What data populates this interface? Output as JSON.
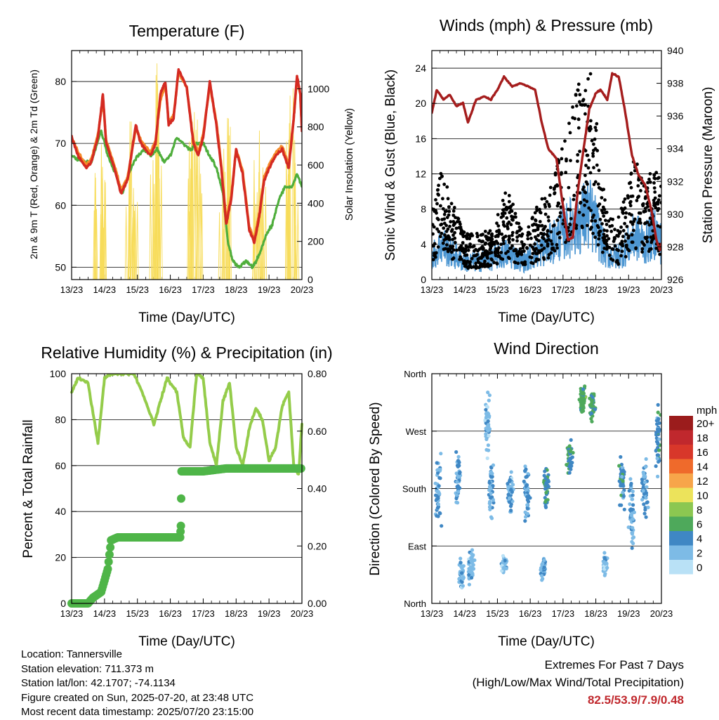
{
  "colors": {
    "t2m": "#d42a22",
    "t9m": "#f58b2a",
    "td": "#4fae3c",
    "solar": "#f7dc5a",
    "gust": "#000000",
    "wind": "#4c96d2",
    "pressure": "#a51d1d",
    "rh": "#94cc4a",
    "precip": "#4fb548"
  },
  "temperature": {
    "title": "Temperature (F)",
    "xlabel": "Time (Day/UTC)",
    "ylabel_left": "2m & 9m T (Red, Orange) & 2m Td (Green)",
    "ylabel_right": "Solar Insolation (Yellow)"
  },
  "winds": {
    "title": "Winds (mph) & Pressure (mb)",
    "xlabel": "Time (Day/UTC)",
    "ylabel_left": "Sonic Wind & Gust (Blue, Black)",
    "ylabel_right": "Station Pressure (Maroon)"
  },
  "humidity": {
    "title": "Relative Humidity (%) & Precipitation (in)",
    "xlabel": "Time (Day/UTC)",
    "ylabel_left": "Percent & Total Rainfall"
  },
  "direction": {
    "title": "Wind Direction",
    "xlabel": "Time (Day/UTC)",
    "ylabel_left": "Direction (Colored By Speed)"
  },
  "legend": {
    "title": "mph",
    "labels": [
      "20+",
      "18",
      "16",
      "14",
      "12",
      "10",
      "8",
      "6",
      "4",
      "2",
      "0"
    ],
    "colors": [
      "#9b1c1c",
      "#c0282d",
      "#d8372a",
      "#ef6a2b",
      "#f7a54a",
      "#ece35b",
      "#8cc751",
      "#4ea95b",
      "#3f87c4",
      "#7dbbe6",
      "#b9e1f6"
    ]
  },
  "info": {
    "location": "Location: Tannersville",
    "elevation": "Station elevation: 711.373 m",
    "latlon": "Station lat/lon: 42.1707; -74.1134",
    "created": "Figure created on Sun, 2025-07-20, at 23:48 UTC",
    "recent": "Most recent data timestamp: 2025/07/20 23:15:00"
  },
  "extremes": {
    "line1": "Extremes For Past 7 Days",
    "line2": "(High/Low/Max Wind/Total Precipitation)",
    "values": "82.5/53.9/7.9/0.48"
  },
  "chart_data": [
    {
      "id": "temperature",
      "type": "line",
      "title": "Temperature (F)",
      "xlabel": "Time (Day/UTC)",
      "ylabel": "2m & 9m T (Red, Orange) & 2m Td (Green)",
      "y2label": "Solar Insolation (Yellow)",
      "x_ticks": [
        "13/23",
        "14/23",
        "15/23",
        "16/23",
        "17/23",
        "18/23",
        "19/23",
        "20/23"
      ],
      "xlim": [
        0,
        7
      ],
      "ylim": [
        48,
        85
      ],
      "y_ticks": [
        50,
        60,
        70,
        80
      ],
      "y2lim": [
        0,
        1200
      ],
      "y2_ticks": [
        0,
        200,
        400,
        600,
        800,
        1000
      ],
      "grid_y": [
        50,
        60,
        70,
        80
      ],
      "series": [
        {
          "name": "2m T",
          "axis": "left",
          "color_key": "t2m",
          "x": [
            0,
            0.2,
            0.45,
            0.6,
            0.8,
            0.95,
            1.05,
            1.3,
            1.5,
            1.7,
            1.95,
            2.1,
            2.4,
            2.55,
            2.7,
            2.85,
            2.95,
            3.1,
            3.25,
            3.5,
            3.7,
            3.85,
            4.0,
            4.2,
            4.4,
            4.55,
            4.7,
            4.85,
            5.0,
            5.2,
            5.4,
            5.55,
            5.7,
            5.85,
            6.0,
            6.2,
            6.4,
            6.6,
            6.75,
            6.85,
            6.95,
            7.0
          ],
          "y": [
            71,
            68,
            66,
            67,
            71,
            78,
            70,
            66,
            62,
            64,
            73,
            70,
            68,
            70,
            78,
            80,
            73,
            74,
            82,
            79,
            70,
            68,
            71,
            80,
            73,
            66,
            57,
            61,
            69,
            65,
            56,
            54,
            58,
            64,
            66,
            68,
            69,
            66,
            74,
            81,
            78,
            72
          ]
        },
        {
          "name": "9m T",
          "axis": "left",
          "color_key": "t9m",
          "x": [
            0,
            0.2,
            0.45,
            0.6,
            0.8,
            0.95,
            1.05,
            1.3,
            1.5,
            1.7,
            1.95,
            2.1,
            2.4,
            2.55,
            2.7,
            2.85,
            2.95,
            3.1,
            3.25,
            3.5,
            3.7,
            3.85,
            4.0,
            4.2,
            4.4,
            4.55,
            4.7,
            4.85,
            5.0,
            5.2,
            5.4,
            5.55,
            5.7,
            5.85,
            6.0,
            6.2,
            6.4,
            6.6,
            6.75,
            6.85,
            6.95,
            7.0
          ],
          "y": [
            71,
            68.5,
            66.5,
            67.5,
            71.5,
            77,
            70.5,
            66.5,
            62.5,
            64.5,
            72.5,
            70.5,
            68.5,
            70.5,
            77,
            79.5,
            73.5,
            74.5,
            81.5,
            79,
            70.5,
            68.5,
            71.5,
            79.5,
            73.5,
            66.5,
            57.5,
            61.5,
            69,
            65.5,
            56.5,
            54.5,
            58.5,
            64.5,
            66.5,
            68.5,
            69.5,
            66.5,
            74,
            80.5,
            78,
            72.5
          ]
        },
        {
          "name": "2m Td",
          "axis": "left",
          "color_key": "td",
          "x": [
            0,
            0.3,
            0.6,
            0.9,
            1.1,
            1.35,
            1.55,
            1.8,
            2.0,
            2.2,
            2.4,
            2.6,
            2.8,
            3.0,
            3.2,
            3.4,
            3.6,
            3.8,
            4.0,
            4.2,
            4.4,
            4.6,
            4.75,
            4.9,
            5.1,
            5.3,
            5.5,
            5.7,
            5.9,
            6.1,
            6.3,
            6.5,
            6.7,
            6.85,
            7.0
          ],
          "y": [
            68,
            67,
            67,
            72,
            68,
            65,
            62,
            66,
            68,
            69,
            68,
            69,
            67,
            68,
            71,
            70,
            69,
            70,
            70,
            68,
            66,
            62,
            54,
            51,
            50,
            51,
            50,
            52,
            55,
            57,
            61,
            63,
            63,
            65,
            63
          ]
        },
        {
          "name": "Solar Insolation",
          "axis": "right",
          "color_key": "solar",
          "note": "daily peaks",
          "peaks": [
            [
              0.85,
              780
            ],
            [
              1.8,
              950
            ],
            [
              2.6,
              1180
            ],
            [
              3.75,
              1050
            ],
            [
              4.7,
              1000
            ],
            [
              5.7,
              900
            ],
            [
              6.7,
              1080
            ]
          ]
        }
      ]
    },
    {
      "id": "winds",
      "type": "line",
      "title": "Winds (mph) & Pressure (mb)",
      "xlabel": "Time (Day/UTC)",
      "ylabel": "Sonic Wind & Gust (Blue, Black)",
      "y2label": "Station Pressure (Maroon)",
      "x_ticks": [
        "13/23",
        "14/23",
        "15/23",
        "16/23",
        "17/23",
        "18/23",
        "19/23",
        "20/23"
      ],
      "xlim": [
        0,
        7
      ],
      "ylim": [
        0,
        26
      ],
      "y_ticks": [
        0,
        4,
        8,
        12,
        16,
        20,
        24
      ],
      "y2lim": [
        926,
        940
      ],
      "y2_ticks": [
        926,
        928,
        930,
        932,
        934,
        936,
        938,
        940
      ],
      "grid_y": [
        4,
        8,
        12,
        16,
        20,
        24
      ],
      "series": [
        {
          "name": "Station Pressure",
          "axis": "right",
          "color_key": "pressure",
          "x": [
            0,
            0.15,
            0.35,
            0.55,
            0.75,
            0.95,
            1.1,
            1.35,
            1.6,
            1.8,
            2.0,
            2.2,
            2.45,
            2.7,
            2.95,
            3.15,
            3.35,
            3.55,
            3.8,
            3.95,
            4.15,
            4.3,
            4.45,
            4.6,
            4.8,
            5.0,
            5.15,
            5.35,
            5.5,
            5.7,
            5.9,
            6.1,
            6.3,
            6.5,
            6.7,
            6.85,
            6.95,
            7.0
          ],
          "y": [
            936.2,
            937.6,
            937.0,
            937.3,
            936.6,
            936.8,
            935.6,
            937.0,
            937.2,
            937.0,
            937.6,
            938.4,
            937.8,
            938.0,
            937.8,
            937.6,
            935.6,
            934.0,
            933.4,
            931.2,
            928.4,
            928.6,
            931.4,
            933.6,
            936.4,
            937.4,
            937.6,
            937.0,
            938.6,
            938.4,
            936.2,
            933.6,
            932.4,
            931.8,
            930.2,
            928.4,
            927.8,
            928.2
          ]
        },
        {
          "name": "Gust",
          "axis": "left",
          "color_key": "gust",
          "note": "scatter envelope",
          "x": [
            0,
            0.3,
            0.6,
            1.0,
            1.4,
            1.9,
            2.3,
            2.8,
            3.2,
            3.6,
            3.9,
            4.1,
            4.4,
            4.6,
            4.8,
            5.0,
            5.3,
            5.6,
            5.9,
            6.2,
            6.5,
            6.8,
            7.0
          ],
          "y": [
            8,
            12,
            9,
            5,
            5,
            6,
            10,
            5,
            8,
            10,
            14,
            16,
            22,
            20,
            24,
            18,
            8,
            6,
            9,
            14,
            10,
            13,
            10
          ]
        },
        {
          "name": "Sonic Wind",
          "axis": "left",
          "color_key": "wind",
          "x": [
            0,
            0.3,
            0.6,
            1.0,
            1.4,
            1.9,
            2.3,
            2.8,
            3.2,
            3.6,
            3.9,
            4.1,
            4.4,
            4.6,
            4.8,
            5.0,
            5.3,
            5.6,
            5.9,
            6.2,
            6.5,
            6.8,
            7.0
          ],
          "y": [
            2.5,
            4,
            3,
            2,
            2,
            2.5,
            3,
            2,
            3,
            4,
            5,
            5.5,
            6.5,
            7,
            7.5,
            6,
            3,
            2.5,
            3.5,
            5,
            4,
            5.5,
            4
          ]
        }
      ]
    },
    {
      "id": "humidity",
      "type": "line",
      "title": "Relative Humidity (%) & Precipitation (in)",
      "xlabel": "Time (Day/UTC)",
      "ylabel": "Percent & Total Rainfall",
      "x_ticks": [
        "13/23",
        "14/23",
        "15/23",
        "16/23",
        "17/23",
        "18/23",
        "19/23",
        "20/23"
      ],
      "xlim": [
        0,
        7
      ],
      "ylim": [
        0,
        100
      ],
      "y_ticks": [
        0,
        20,
        40,
        60,
        80,
        100
      ],
      "y2lim": [
        0,
        0.8
      ],
      "y2_ticks": [
        "0.00",
        "0.20",
        "0.40",
        "0.60",
        "0.80"
      ],
      "grid_y": [
        20,
        40,
        60,
        80
      ],
      "series": [
        {
          "name": "Relative Humidity",
          "axis": "left",
          "color_key": "rh",
          "x": [
            0,
            0.2,
            0.5,
            0.8,
            1.0,
            1.2,
            1.5,
            1.9,
            2.2,
            2.5,
            2.7,
            2.9,
            3.2,
            3.4,
            3.6,
            3.8,
            4.0,
            4.2,
            4.4,
            4.6,
            4.8,
            5.0,
            5.2,
            5.4,
            5.6,
            5.8,
            6.0,
            6.2,
            6.4,
            6.6,
            6.75,
            6.9,
            7.0
          ],
          "y": [
            92,
            98,
            96,
            70,
            98,
            100,
            100,
            100,
            90,
            78,
            88,
            98,
            92,
            72,
            68,
            100,
            98,
            70,
            60,
            88,
            96,
            68,
            60,
            76,
            85,
            80,
            62,
            68,
            86,
            92,
            60,
            56,
            78
          ]
        },
        {
          "name": "Total Precipitation",
          "axis": "right",
          "color_key": "precip",
          "x": [
            0,
            0.5,
            0.65,
            0.9,
            1.1,
            1.2,
            1.4,
            2.0,
            3.3,
            3.32,
            3.34,
            3.5,
            4.0,
            4.7,
            5.0,
            6.0,
            7.0
          ],
          "y": [
            0.0,
            0.0,
            0.02,
            0.04,
            0.12,
            0.22,
            0.23,
            0.23,
            0.23,
            0.27,
            0.46,
            0.46,
            0.46,
            0.47,
            0.47,
            0.47,
            0.47
          ]
        }
      ]
    },
    {
      "id": "direction",
      "type": "scatter",
      "title": "Wind Direction",
      "xlabel": "Time (Day/UTC)",
      "ylabel": "Direction (Colored By Speed)",
      "x_ticks": [
        "13/23",
        "14/23",
        "15/23",
        "16/23",
        "17/23",
        "18/23",
        "19/23",
        "20/23"
      ],
      "xlim": [
        0,
        7
      ],
      "ylim": [
        0,
        360
      ],
      "y_ticks": [
        "North",
        "East",
        "South",
        "West",
        "North"
      ],
      "grid_y": [
        90,
        180,
        270
      ],
      "clusters": [
        {
          "x": 0.2,
          "dir": 170,
          "spread": 80,
          "speed": 3
        },
        {
          "x": 0.8,
          "dir": 200,
          "spread": 70,
          "speed": 3
        },
        {
          "x": 0.9,
          "dir": 45,
          "spread": 30,
          "speed": 2
        },
        {
          "x": 1.2,
          "dir": 60,
          "spread": 40,
          "speed": 2
        },
        {
          "x": 1.7,
          "dir": 280,
          "spread": 70,
          "speed": 2
        },
        {
          "x": 1.8,
          "dir": 180,
          "spread": 60,
          "speed": 3
        },
        {
          "x": 2.2,
          "dir": 60,
          "spread": 20,
          "speed": 2
        },
        {
          "x": 2.4,
          "dir": 170,
          "spread": 40,
          "speed": 3
        },
        {
          "x": 2.9,
          "dir": 170,
          "spread": 60,
          "speed": 3
        },
        {
          "x": 3.4,
          "dir": 55,
          "spread": 20,
          "speed": 3
        },
        {
          "x": 3.5,
          "dir": 180,
          "spread": 50,
          "speed": 5
        },
        {
          "x": 4.2,
          "dir": 230,
          "spread": 40,
          "speed": 5
        },
        {
          "x": 4.6,
          "dir": 320,
          "spread": 30,
          "speed": 6
        },
        {
          "x": 4.9,
          "dir": 310,
          "spread": 40,
          "speed": 5
        },
        {
          "x": 5.3,
          "dir": 60,
          "spread": 20,
          "speed": 2
        },
        {
          "x": 5.8,
          "dir": 190,
          "spread": 50,
          "speed": 4
        },
        {
          "x": 6.1,
          "dir": 140,
          "spread": 80,
          "speed": 3
        },
        {
          "x": 6.5,
          "dir": 180,
          "spread": 60,
          "speed": 3
        },
        {
          "x": 6.9,
          "dir": 260,
          "spread": 70,
          "speed": 4
        }
      ]
    }
  ]
}
